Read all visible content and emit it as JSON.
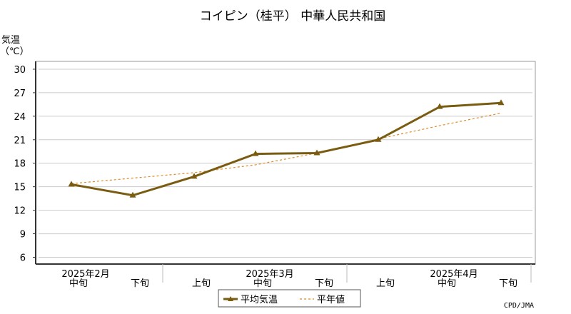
{
  "chart_data": {
    "type": "line",
    "title": "コイピン（桂平） 中華人民共和国",
    "ylabel_line1": "気温",
    "ylabel_line2": "（℃）",
    "ylim": [
      6,
      30
    ],
    "yticks": [
      6,
      9,
      12,
      15,
      18,
      21,
      24,
      27,
      30
    ],
    "grid": true,
    "x_categories": [
      "中旬",
      "下旬",
      "上旬",
      "中旬",
      "下旬",
      "上旬",
      "中旬",
      "下旬"
    ],
    "month_labels": [
      {
        "label": "2025年2月",
        "at_index": 0
      },
      {
        "label": "2025年3月",
        "at_index": 3
      },
      {
        "label": "2025年4月",
        "at_index": 6
      }
    ],
    "series": [
      {
        "name": "平均気温",
        "style": "solid-marker",
        "color": "#7a5c10",
        "values": [
          15.3,
          13.9,
          16.3,
          19.2,
          19.3,
          21.0,
          25.2,
          25.7
        ]
      },
      {
        "name": "平年値",
        "style": "dashed",
        "color": "#e08a2a",
        "values": [
          15.4,
          16.1,
          16.8,
          17.8,
          19.3,
          21.1,
          22.8,
          24.4
        ]
      }
    ],
    "legend_position": "bottom-center",
    "source": "CPD/JMA"
  }
}
